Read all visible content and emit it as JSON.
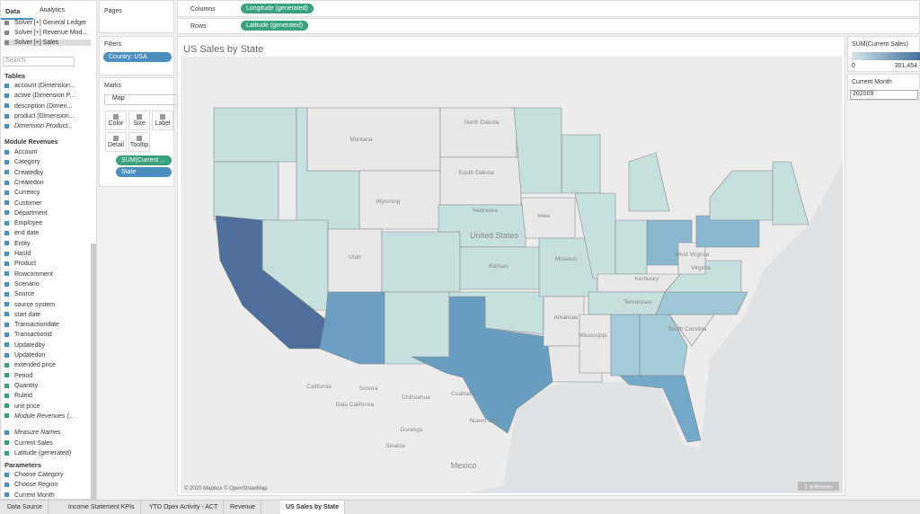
{
  "tabs": {
    "data": "Data",
    "analytics": "Analytics"
  },
  "sources": [
    "Solver [+] General Ledger",
    "Solver [+] Revenue Mod...",
    "Solver [+] Sales"
  ],
  "search": "Search",
  "tables_header": "Tables",
  "table_fields": [
    "account (Dimension...",
    "active (Dimension P...",
    "description (Dimen...",
    "product (Dimension...",
    "Dimension Product..."
  ],
  "module": {
    "name": "Module Revenues",
    "fields": [
      "Account",
      "Category",
      "Createdby",
      "Createdon",
      "Currency",
      "Customer",
      "Department",
      "Employee",
      "end date",
      "Entity",
      "HasId",
      "Product",
      "Rowcomment",
      "Scenario",
      "Source",
      "source system",
      "start date",
      "Transactiondate",
      "Transactionid",
      "Updatedby",
      "Updatedon",
      "extended price",
      "Period",
      "Quantity",
      "Ruleid",
      "unit price",
      "Module Revenues (..."
    ]
  },
  "extra_fields": [
    "Measure Names",
    "Current Sales",
    "Latitude (generated)"
  ],
  "parameters": {
    "header": "Parameters",
    "items": [
      "Choose Category",
      "Choose Region",
      "Current Month"
    ]
  },
  "pages": "Pages",
  "filters": {
    "header": "Filters",
    "pill": "Country: USA"
  },
  "marks": {
    "header": "Marks",
    "type": "Map",
    "buttons": [
      "Color",
      "Size",
      "Label",
      "Detail",
      "Tooltip"
    ],
    "pills": [
      "SUM(Current ...",
      "State"
    ]
  },
  "shelves": {
    "columns": "Columns",
    "columns_pill": "Longitude (generated)",
    "rows": "Rows",
    "rows_pill": "Latitude (generated)"
  },
  "sheet": {
    "title": "US Sales by State",
    "labels": [
      "Montana",
      "North Dakota",
      "South Dakota",
      "Wyoming",
      "Nebraska",
      "Iowa",
      "United States",
      "Utah",
      "Kansas",
      "Missouri",
      "Kentucky",
      "Virginia",
      "West Virginia",
      "Arkansas",
      "Tennessee",
      "South Carolina",
      "Mississippi",
      "California",
      "Baja California",
      "Sonora",
      "Chihuahua",
      "Coahuila",
      "Nuevo Leon",
      "Durango",
      "Sinaloa",
      "Mexico"
    ],
    "attribution": "© 2020 Mapbox © OpenStreetMap",
    "unknown": "1 unknown"
  },
  "legend": {
    "title": "SUM(Current Sales)",
    "min": "0",
    "max": "301,454"
  },
  "filter_card": {
    "title": "Current Month",
    "value": "202009"
  },
  "sheet_tabs": [
    "Data Source",
    "Income Statement KPIs",
    "YTD Opex Activity - ACT",
    "Revenue",
    "US Sales by State"
  ]
}
